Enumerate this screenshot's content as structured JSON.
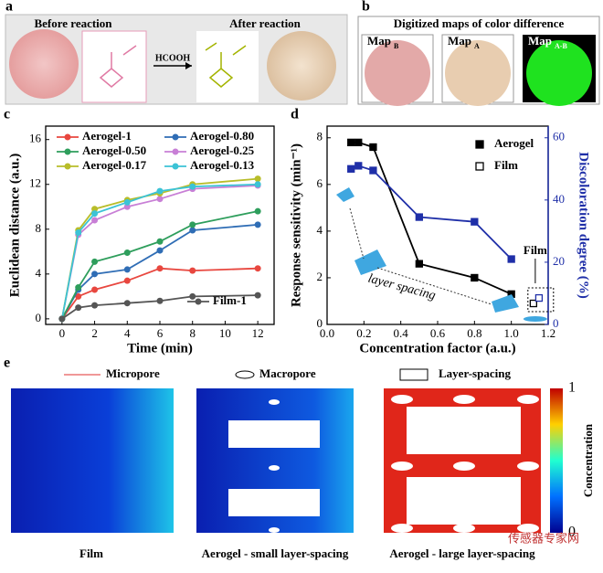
{
  "figure": {
    "panel_labels": [
      "a",
      "b",
      "c",
      "d",
      "e"
    ]
  },
  "panel_a": {
    "before": "Before reaction",
    "after": "After reaction",
    "reagent": "HCOOH"
  },
  "panel_b": {
    "title": "Digitized maps of color difference",
    "maps": [
      {
        "main": "Map",
        "sub": "B"
      },
      {
        "main": "Map",
        "sub": "A"
      },
      {
        "main": "Map",
        "sub": "A-B"
      }
    ]
  },
  "chart_data": [
    {
      "type": "line",
      "xlabel": "Time (min)",
      "ylabel": "Euclidean distance (a.u.)",
      "x": [
        0,
        1,
        2,
        4,
        6,
        8,
        12
      ],
      "xlim": [
        -1,
        13
      ],
      "xticks": [
        0,
        2,
        4,
        6,
        8,
        10,
        12
      ],
      "ylim": [
        -0.5,
        17.2
      ],
      "yticks": [
        0,
        4,
        8,
        12,
        16
      ],
      "legend": "upper left",
      "series": [
        {
          "name": "Aerogel-1",
          "color": "#e8473f",
          "values": [
            0,
            2.0,
            2.6,
            3.4,
            4.5,
            4.3,
            4.5
          ]
        },
        {
          "name": "Aerogel-0.80",
          "color": "#2f6db5",
          "values": [
            0,
            2.6,
            4.0,
            4.4,
            6.1,
            7.9,
            8.4
          ]
        },
        {
          "name": "Aerogel-0.50",
          "color": "#2e9e5c",
          "values": [
            0,
            2.8,
            5.1,
            5.9,
            6.9,
            8.4,
            9.6
          ]
        },
        {
          "name": "Aerogel-0.25",
          "color": "#c87fd6",
          "values": [
            0,
            7.5,
            8.8,
            10.0,
            10.7,
            11.6,
            11.9
          ]
        },
        {
          "name": "Aerogel-0.17",
          "color": "#b8bd2a",
          "values": [
            0,
            7.9,
            9.8,
            10.6,
            11.2,
            12.0,
            12.5
          ]
        },
        {
          "name": "Aerogel-0.13",
          "color": "#3cc3d6",
          "values": [
            0,
            7.7,
            9.4,
            10.4,
            11.4,
            11.8,
            12.0
          ]
        },
        {
          "name": "Film-1",
          "color": "#555555",
          "values": [
            0,
            1.0,
            1.2,
            1.4,
            1.6,
            2.0,
            2.1
          ]
        }
      ]
    },
    {
      "type": "line",
      "xlabel": "Concentration factor (a.u.)",
      "ylabel": "Response sensitivity (min⁻¹)",
      "y2label": "Discoloration degree (%)",
      "xlim": [
        0,
        1.2
      ],
      "xticks": [
        {
          "value": 0,
          "label": "0.0"
        },
        {
          "value": 0.2,
          "label": "0.2"
        },
        {
          "value": 0.4,
          "label": "0.4"
        },
        {
          "value": 0.6,
          "label": "0.6"
        },
        {
          "value": 0.8,
          "label": "0.8"
        },
        {
          "value": 1,
          "label": "1.0"
        },
        {
          "value": 1.2,
          "label": "1.2"
        }
      ],
      "ylim": [
        0,
        8.5
      ],
      "yticks": [
        0,
        2,
        4,
        6,
        8
      ],
      "y2lim": [
        0,
        63.75
      ],
      "y2ticks": [
        0,
        20,
        40,
        60
      ],
      "y2color": "#1f2fa8",
      "legend": "upper right",
      "annotations": [
        "layer spacing",
        "Film"
      ],
      "series": [
        {
          "name": "Aerogel",
          "color": "#000000",
          "marker": "filled",
          "x": [
            0.13,
            0.17,
            0.25,
            0.5,
            0.8,
            1.0
          ],
          "values": [
            7.8,
            7.8,
            7.6,
            2.6,
            2.0,
            1.3
          ]
        },
        {
          "name": "Film",
          "color": "#000000",
          "marker": "open",
          "x": [
            1.12
          ],
          "values": [
            0.9
          ]
        },
        {
          "color": "#1f2fa8",
          "marker": "filled",
          "axis": "y2",
          "x": [
            0.13,
            0.17,
            0.25,
            0.5,
            0.8,
            1.0
          ],
          "values": [
            50,
            51,
            49.5,
            34.5,
            33,
            21
          ]
        },
        {
          "color": "#1f2fa8",
          "marker": "open",
          "axis": "y2",
          "x": [
            1.15
          ],
          "values": [
            8.5
          ]
        }
      ]
    }
  ],
  "panel_e": {
    "legend": [
      "Micropore",
      "Macropore",
      "Layer-spacing"
    ],
    "captions": [
      "Film",
      "Aerogel - small layer-spacing",
      "Aerogel - large layer-spacing"
    ],
    "colorbar": {
      "label": "Concentration",
      "ticks": [
        0,
        1
      ]
    },
    "watermark": "传感器专家网"
  }
}
